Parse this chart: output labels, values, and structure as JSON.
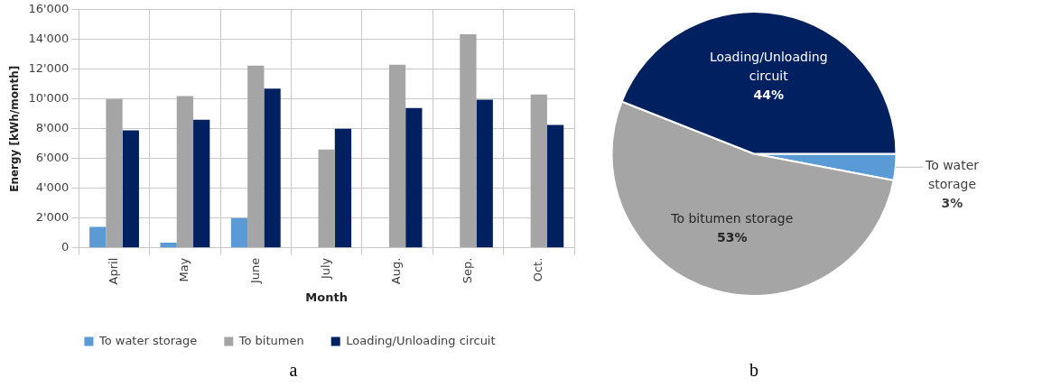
{
  "chart_data": [
    {
      "type": "bar",
      "xlabel": "Month",
      "ylabel": "Energy [kWh/month]",
      "categories": [
        "April",
        "May",
        "June",
        "July",
        "Aug.",
        "Sep.",
        "Oct."
      ],
      "series": [
        {
          "name": "To water storage",
          "color": "#5b9bd5",
          "values": [
            1400,
            350,
            2000,
            0,
            0,
            0,
            0
          ]
        },
        {
          "name": "To bitumen",
          "color": "#a5a5a5",
          "values": [
            10000,
            10200,
            12250,
            6600,
            12300,
            14350,
            10300
          ]
        },
        {
          "name": "Loading/Unloading circuit",
          "color": "#002060",
          "values": [
            7900,
            8600,
            10700,
            8000,
            9400,
            9950,
            8250
          ]
        }
      ],
      "ylim": [
        0,
        16000
      ],
      "yticks": [
        {
          "value": 0,
          "label": "0"
        },
        {
          "value": 2000,
          "label": "2'000"
        },
        {
          "value": 4000,
          "label": "4'000"
        },
        {
          "value": 6000,
          "label": "6'000"
        },
        {
          "value": 8000,
          "label": "8'000"
        },
        {
          "value": 10000,
          "label": "10'000"
        },
        {
          "value": 12000,
          "label": "12'000"
        },
        {
          "value": 14000,
          "label": "14'000"
        },
        {
          "value": 16000,
          "label": "16'000"
        }
      ],
      "grid": true,
      "legend": "bottom",
      "annotations": [
        "a"
      ]
    },
    {
      "type": "pie",
      "categories": [
        "To water storage",
        "To bitumen storage",
        "Loading/Unloading circuit"
      ],
      "values": [
        3,
        53,
        44
      ],
      "colors": [
        "#5b9bd5",
        "#a5a5a5",
        "#002060"
      ],
      "value_labels": [
        "3%",
        "53%",
        "44%"
      ],
      "annotations": [
        "b"
      ]
    }
  ]
}
